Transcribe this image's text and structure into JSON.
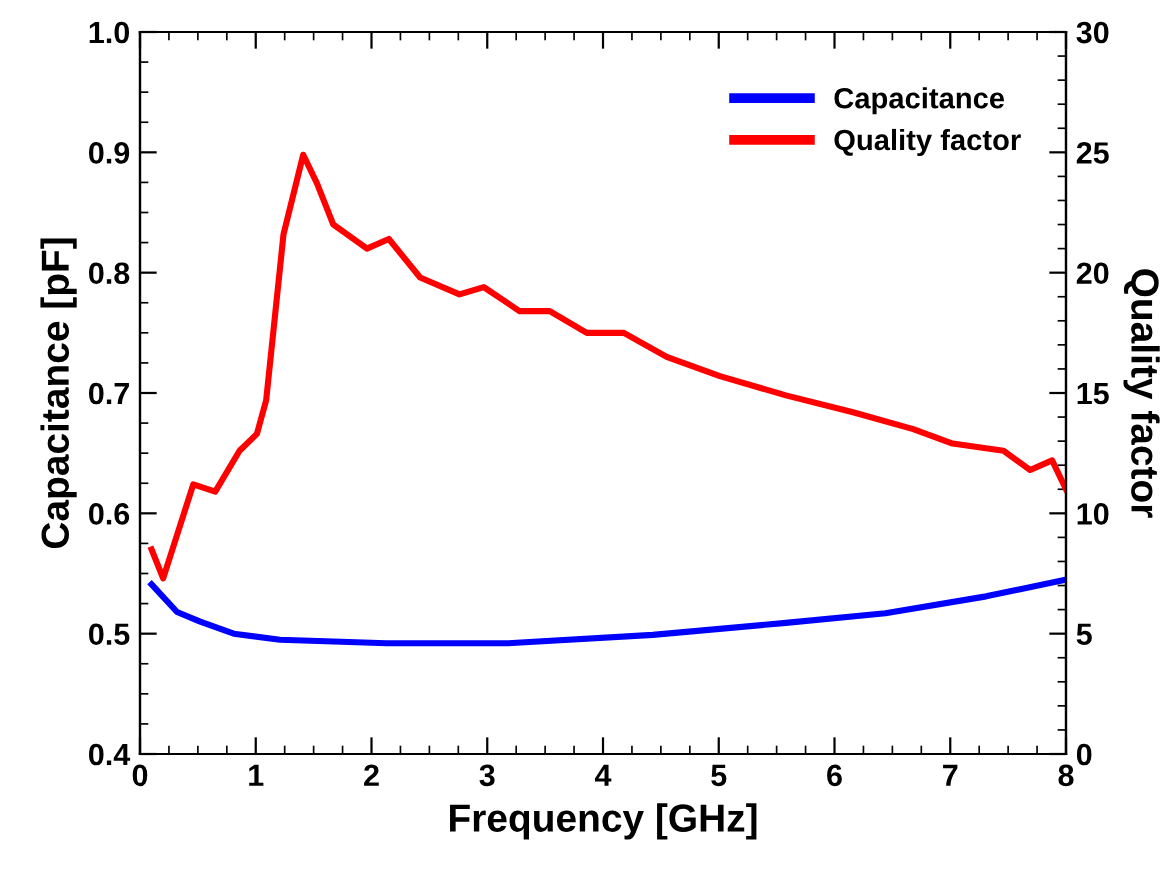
{
  "chart_data": {
    "type": "line",
    "xlabel": "Frequency [GHz]",
    "ylabel": "Capacitance [pF]",
    "y2label": "Quality factor",
    "xlim": [
      0,
      8
    ],
    "xticks": [
      0,
      1,
      2,
      3,
      4,
      5,
      6,
      7,
      8
    ],
    "ylim": [
      0.4,
      1.0
    ],
    "yticks": [
      0.4,
      0.5,
      0.6,
      0.7,
      0.8,
      0.9,
      {
        "value": 1.0,
        "label": "1.0"
      }
    ],
    "y2lim": [
      0,
      30
    ],
    "y2ticks": [
      0,
      5,
      10,
      15,
      20,
      25,
      30
    ],
    "legend": "top right",
    "grid": false,
    "marker": "none",
    "line_style": "solid",
    "series": [
      {
        "name": "Capacitance",
        "color": "#0000ff",
        "x": [
          0.1,
          0.32,
          0.52,
          0.81,
          1.21,
          2.13,
          3.17,
          4.43,
          5.58,
          6.44,
          7.31,
          8.0
        ],
        "values": [
          0.541,
          0.518,
          0.51,
          0.5,
          0.495,
          0.492,
          0.492,
          0.499,
          0.509,
          0.517,
          0.531,
          0.545
        ]
      },
      {
        "name": "Quality factor",
        "color": "#ff0000",
        "axis": "y2",
        "x": [
          0.1,
          0.2,
          0.46,
          0.65,
          0.86,
          1.01,
          1.09,
          1.24,
          1.41,
          1.53,
          1.67,
          1.96,
          2.15,
          2.42,
          2.76,
          2.97,
          3.28,
          3.54,
          3.86,
          4.18,
          4.55,
          5.01,
          5.58,
          6.16,
          6.68,
          7.02,
          7.46,
          7.69,
          7.88,
          8.0
        ],
        "values": [
          8.5,
          7.3,
          11.2,
          10.9,
          12.6,
          13.3,
          14.7,
          21.6,
          24.9,
          23.7,
          22.0,
          21.0,
          21.4,
          19.8,
          19.1,
          19.4,
          18.4,
          18.4,
          17.5,
          17.5,
          16.5,
          15.7,
          14.9,
          14.2,
          13.5,
          12.9,
          12.6,
          11.8,
          12.2,
          11.0
        ]
      }
    ]
  }
}
